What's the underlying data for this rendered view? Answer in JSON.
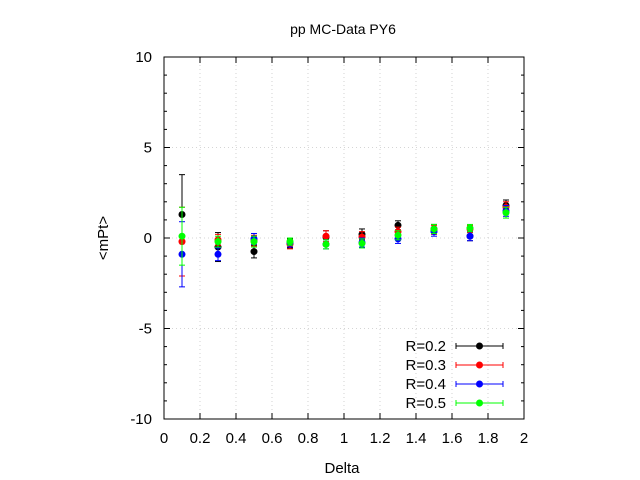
{
  "chart_data": {
    "type": "scatter",
    "title": "pp MC-Data PY6",
    "xlabel": "Delta",
    "ylabel": "<mPt>",
    "xlim": [
      0,
      2
    ],
    "ylim": [
      -10,
      10
    ],
    "xticks": [
      "0",
      "0.2",
      "0.4",
      "0.6",
      "0.8",
      "1",
      "1.2",
      "1.4",
      "1.6",
      "1.8",
      "2"
    ],
    "yticks": [
      "-10",
      "-5",
      "0",
      "5",
      "10"
    ],
    "grid": true,
    "legend_position": "bottom-right",
    "series": [
      {
        "name": "R=0.2",
        "color": "#000000",
        "points": [
          {
            "x": 0.1,
            "y": 1.3,
            "err": 2.2
          },
          {
            "x": 0.3,
            "y": -0.5,
            "err": 0.8
          },
          {
            "x": 0.5,
            "y": -0.75,
            "err": 0.35
          },
          {
            "x": 0.7,
            "y": -0.3,
            "err": 0.25
          },
          {
            "x": 0.9,
            "y": 0.05,
            "err": 0.35
          },
          {
            "x": 1.1,
            "y": 0.2,
            "err": 0.3
          },
          {
            "x": 1.3,
            "y": 0.7,
            "err": 0.25
          },
          {
            "x": 1.5,
            "y": 0.5,
            "err": 0.25
          },
          {
            "x": 1.7,
            "y": 0.1,
            "err": 0.25
          },
          {
            "x": 1.9,
            "y": 1.8,
            "err": 0.3
          }
        ]
      },
      {
        "name": "R=0.3",
        "color": "#ff0000",
        "points": [
          {
            "x": 0.1,
            "y": -0.2,
            "err": 1.9
          },
          {
            "x": 0.3,
            "y": -0.1,
            "err": 0.3
          },
          {
            "x": 0.5,
            "y": -0.15,
            "err": 0.3
          },
          {
            "x": 0.7,
            "y": -0.35,
            "err": 0.25
          },
          {
            "x": 0.9,
            "y": 0.1,
            "err": 0.3
          },
          {
            "x": 1.1,
            "y": 0.05,
            "err": 0.3
          },
          {
            "x": 1.3,
            "y": 0.35,
            "err": 0.25
          },
          {
            "x": 1.5,
            "y": 0.45,
            "err": 0.25
          },
          {
            "x": 1.7,
            "y": 0.5,
            "err": 0.2
          },
          {
            "x": 1.9,
            "y": 1.7,
            "err": 0.3
          }
        ]
      },
      {
        "name": "R=0.4",
        "color": "#0000ff",
        "points": [
          {
            "x": 0.1,
            "y": -0.9,
            "err": 1.8
          },
          {
            "x": 0.3,
            "y": -0.9,
            "err": 0.35
          },
          {
            "x": 0.5,
            "y": -0.05,
            "err": 0.3
          },
          {
            "x": 0.7,
            "y": -0.25,
            "err": 0.25
          },
          {
            "x": 0.9,
            "y": -0.35,
            "err": 0.25
          },
          {
            "x": 1.1,
            "y": -0.25,
            "err": 0.25
          },
          {
            "x": 1.3,
            "y": -0.05,
            "err": 0.25
          },
          {
            "x": 1.5,
            "y": 0.35,
            "err": 0.25
          },
          {
            "x": 1.7,
            "y": 0.1,
            "err": 0.25
          },
          {
            "x": 1.9,
            "y": 1.5,
            "err": 0.3
          }
        ]
      },
      {
        "name": "R=0.5",
        "color": "#00ff00",
        "points": [
          {
            "x": 0.1,
            "y": 0.1,
            "err": 1.6
          },
          {
            "x": 0.3,
            "y": -0.2,
            "err": 0.3
          },
          {
            "x": 0.5,
            "y": -0.2,
            "err": 0.3
          },
          {
            "x": 0.7,
            "y": -0.2,
            "err": 0.2
          },
          {
            "x": 0.9,
            "y": -0.35,
            "err": 0.25
          },
          {
            "x": 1.1,
            "y": -0.3,
            "err": 0.25
          },
          {
            "x": 1.3,
            "y": 0.15,
            "err": 0.25
          },
          {
            "x": 1.5,
            "y": 0.5,
            "err": 0.25
          },
          {
            "x": 1.7,
            "y": 0.55,
            "err": 0.2
          },
          {
            "x": 1.9,
            "y": 1.4,
            "err": 0.3
          }
        ]
      }
    ]
  }
}
